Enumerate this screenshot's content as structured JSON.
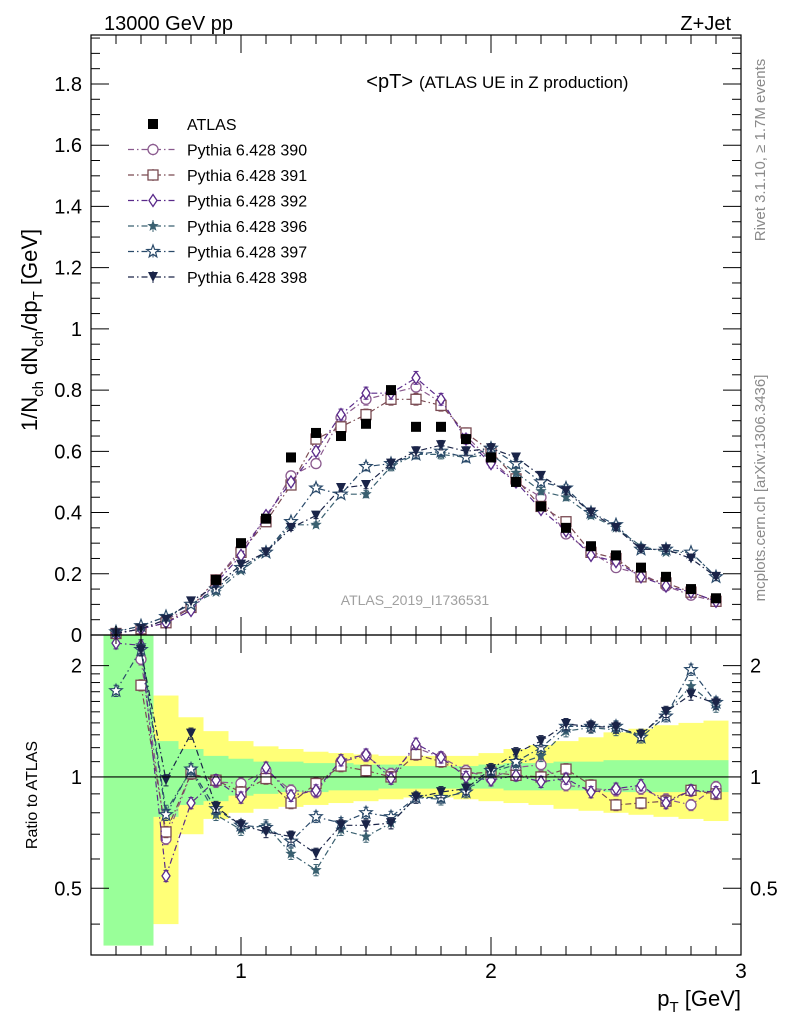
{
  "header": {
    "left_label": "13000 GeV pp",
    "right_label": "Z+Jet"
  },
  "side_labels": {
    "rivet": "Rivet 3.1.10, ≥ 1.7M events",
    "mcplots": "mcplots.cern.ch [arXiv:1306.3436]"
  },
  "chart_data": [
    {
      "type": "scatter",
      "title": "<pT>",
      "subtitle": "(ATLAS UE in Z production)",
      "watermark": "ATLAS_2019_I1736531",
      "ylabel": "1/N_ch dN_ch/dp_T [GeV]",
      "xlabel": "p_T [GeV]",
      "xlim": [
        0.4,
        3.0
      ],
      "ylim": [
        0,
        1.96
      ],
      "x_ticks": [
        "1",
        "2",
        "3"
      ],
      "y_ticks": [
        "0",
        "0.2",
        "0.4",
        "0.6",
        "0.8",
        "1",
        "1.2",
        "1.4",
        "1.6",
        "1.8"
      ],
      "legend_position": "top-left",
      "x": [
        0.5,
        0.6,
        0.7,
        0.8,
        0.9,
        1.0,
        1.1,
        1.2,
        1.3,
        1.4,
        1.5,
        1.6,
        1.7,
        1.8,
        1.9,
        2.0,
        2.1,
        2.2,
        2.3,
        2.4,
        2.5,
        2.6,
        2.7,
        2.8,
        2.9
      ],
      "data_series": {
        "name": "ATLAS",
        "color": "#000000",
        "marker": "square-filled",
        "values": [
          null,
          null,
          null,
          null,
          0.18,
          0.3,
          0.38,
          0.58,
          0.66,
          0.65,
          0.69,
          0.8,
          0.68,
          0.68,
          0.64,
          0.58,
          0.5,
          0.42,
          0.35,
          0.29,
          0.26,
          0.22,
          0.19,
          0.15,
          0.12
        ]
      },
      "series": [
        {
          "name": "Pythia 6.428 390",
          "color": "#8a5a8e",
          "marker": "circle-open",
          "values": [
            0.005,
            0.02,
            0.05,
            0.09,
            0.18,
            0.28,
            0.38,
            0.52,
            0.56,
            0.71,
            0.77,
            0.79,
            0.81,
            0.76,
            0.65,
            0.57,
            0.5,
            0.45,
            0.33,
            0.27,
            0.22,
            0.2,
            0.16,
            0.13,
            0.11
          ]
        },
        {
          "name": "Pythia 6.428 391",
          "color": "#7a4a52",
          "marker": "square-open",
          "values": [
            0.005,
            0.02,
            0.04,
            0.09,
            0.18,
            0.27,
            0.37,
            0.49,
            0.64,
            0.68,
            0.72,
            0.77,
            0.77,
            0.75,
            0.66,
            0.6,
            0.51,
            0.42,
            0.37,
            0.27,
            0.25,
            0.19,
            0.17,
            0.14,
            0.11
          ]
        },
        {
          "name": "Pythia 6.428 392",
          "color": "#5a2a8a",
          "marker": "diamond-open",
          "values": [
            0.005,
            0.02,
            0.04,
            0.08,
            0.17,
            0.26,
            0.39,
            0.5,
            0.6,
            0.72,
            0.79,
            0.79,
            0.84,
            0.77,
            0.64,
            0.56,
            0.5,
            0.41,
            0.34,
            0.26,
            0.24,
            0.19,
            0.16,
            0.14,
            0.11
          ]
        },
        {
          "name": "Pythia 6.428 396",
          "color": "#3a6070",
          "marker": "star-filled",
          "values": [
            0.01,
            0.03,
            0.06,
            0.1,
            0.14,
            0.21,
            0.27,
            0.36,
            0.36,
            0.46,
            0.46,
            0.55,
            0.59,
            0.59,
            0.58,
            0.59,
            0.53,
            0.47,
            0.45,
            0.39,
            0.35,
            0.29,
            0.27,
            0.27,
            0.19
          ]
        },
        {
          "name": "Pythia 6.428 397",
          "color": "#2a4a6a",
          "marker": "star-open",
          "values": [
            0.01,
            0.03,
            0.06,
            0.1,
            0.15,
            0.22,
            0.27,
            0.37,
            0.48,
            0.46,
            0.55,
            0.56,
            0.59,
            0.6,
            0.58,
            0.61,
            0.56,
            0.5,
            0.48,
            0.4,
            0.36,
            0.28,
            0.28,
            0.27,
            0.19
          ]
        },
        {
          "name": "Pythia 6.428 398",
          "color": "#1a2448",
          "marker": "triangle-down-filled",
          "values": [
            0.005,
            0.02,
            0.05,
            0.11,
            0.16,
            0.23,
            0.27,
            0.35,
            0.39,
            0.48,
            0.49,
            0.56,
            0.6,
            0.62,
            0.6,
            0.61,
            0.58,
            0.52,
            0.47,
            0.4,
            0.35,
            0.28,
            0.28,
            0.25,
            0.19
          ]
        }
      ]
    },
    {
      "type": "scatter",
      "ylabel": "Ratio to ATLAS",
      "xlabel": "p_T [GeV]",
      "xlim": [
        0.4,
        3.0
      ],
      "ylim": [
        0.33,
        2.42
      ],
      "y_scale": "log",
      "y_ticks": [
        "0.5",
        "1",
        "2"
      ],
      "x_ticks": [
        "1",
        "2",
        "3"
      ],
      "reference_line": 1,
      "bands": [
        {
          "name": "inner",
          "color": "#99ff99",
          "low": [
            0.35,
            0.35,
            0.78,
            0.84,
            0.86,
            0.89,
            0.9,
            0.91,
            0.91,
            0.92,
            0.92,
            0.93,
            0.93,
            0.93,
            0.93,
            0.93,
            0.92,
            0.92,
            0.92,
            0.92,
            0.91,
            0.91,
            0.91,
            0.91,
            0.91
          ],
          "high": [
            2.42,
            2.42,
            1.25,
            1.19,
            1.14,
            1.12,
            1.1,
            1.1,
            1.09,
            1.09,
            1.08,
            1.08,
            1.07,
            1.07,
            1.07,
            1.08,
            1.09,
            1.09,
            1.1,
            1.1,
            1.11,
            1.11,
            1.11,
            1.11,
            1.11
          ]
        },
        {
          "name": "outer",
          "color": "#ffff77",
          "low": [
            0.35,
            0.35,
            0.4,
            0.7,
            0.77,
            0.8,
            0.82,
            0.83,
            0.84,
            0.85,
            0.86,
            0.87,
            0.88,
            0.88,
            0.87,
            0.86,
            0.85,
            0.84,
            0.82,
            0.81,
            0.8,
            0.79,
            0.78,
            0.77,
            0.76
          ]
        },
        {
          "name": "outer-high",
          "color": "#ffff77",
          "high": [
            2.42,
            2.42,
            1.66,
            1.45,
            1.33,
            1.25,
            1.21,
            1.19,
            1.17,
            1.16,
            1.15,
            1.14,
            1.14,
            1.14,
            1.14,
            1.16,
            1.19,
            1.22,
            1.25,
            1.28,
            1.32,
            1.35,
            1.38,
            1.4,
            1.42
          ]
        }
      ],
      "x": [
        0.5,
        0.6,
        0.7,
        0.8,
        0.9,
        1.0,
        1.1,
        1.2,
        1.3,
        1.4,
        1.5,
        1.6,
        1.7,
        1.8,
        1.9,
        2.0,
        2.1,
        2.2,
        2.3,
        2.4,
        2.5,
        2.6,
        2.7,
        2.8,
        2.9
      ],
      "series": [
        {
          "name": "Pythia 6.428 390",
          "color": "#8a5a8e",
          "marker": "circle-open",
          "values": [
            null,
            2.08,
            0.68,
            1.02,
            0.97,
            0.96,
            1.04,
            0.92,
            0.91,
            1.1,
            1.14,
            1.02,
            1.2,
            1.13,
            1.04,
            0.99,
            1.06,
            1.08,
            0.95,
            0.93,
            0.92,
            0.93,
            0.87,
            0.84,
            0.94
          ]
        },
        {
          "name": "Pythia 6.428 391",
          "color": "#7a4a52",
          "marker": "square-open",
          "values": [
            null,
            1.77,
            0.71,
            1.02,
            0.98,
            0.91,
            0.99,
            0.85,
            0.96,
            1.07,
            1.04,
            1.0,
            1.15,
            1.1,
            1.02,
            1.03,
            1.01,
            1.0,
            1.05,
            0.95,
            0.84,
            0.85,
            0.86,
            0.92,
            0.9
          ]
        },
        {
          "name": "Pythia 6.428 392",
          "color": "#5a2a8a",
          "marker": "diamond-open",
          "values": [
            2.3,
            2.27,
            0.54,
            0.85,
            0.98,
            0.88,
            1.06,
            0.89,
            0.92,
            1.11,
            1.15,
            0.99,
            1.23,
            1.13,
            1.0,
            0.98,
            1.01,
            0.97,
            0.99,
            0.91,
            0.93,
            0.95,
            0.85,
            0.92,
            0.91
          ]
        },
        {
          "name": "Pythia 6.428 396",
          "color": "#3a6070",
          "marker": "star-filled",
          "values": [
            null,
            2.27,
            0.81,
            1.04,
            0.79,
            0.72,
            0.74,
            0.62,
            0.56,
            0.72,
            0.69,
            0.75,
            0.88,
            0.87,
            0.92,
            1.03,
            1.08,
            1.14,
            1.33,
            1.36,
            1.34,
            1.3,
            1.49,
            1.76,
            1.55
          ]
        },
        {
          "name": "Pythia 6.428 397",
          "color": "#2a4a6a",
          "marker": "star-open",
          "values": [
            1.71,
            2.21,
            0.79,
            1.05,
            0.82,
            0.74,
            0.73,
            0.67,
            0.78,
            0.75,
            0.8,
            0.78,
            0.88,
            0.88,
            0.91,
            1.04,
            1.1,
            1.2,
            1.37,
            1.37,
            1.37,
            1.28,
            1.46,
            1.95,
            1.59
          ]
        },
        {
          "name": "Pythia 6.428 398",
          "color": "#1a2448",
          "marker": "triangle-down-filled",
          "values": [
            null,
            2.2,
            0.98,
            1.31,
            0.83,
            0.74,
            0.71,
            0.69,
            0.62,
            0.74,
            0.74,
            0.75,
            0.88,
            0.91,
            0.93,
            1.05,
            1.16,
            1.25,
            1.39,
            1.37,
            1.36,
            1.3,
            1.5,
            1.67,
            1.58
          ]
        }
      ]
    }
  ]
}
